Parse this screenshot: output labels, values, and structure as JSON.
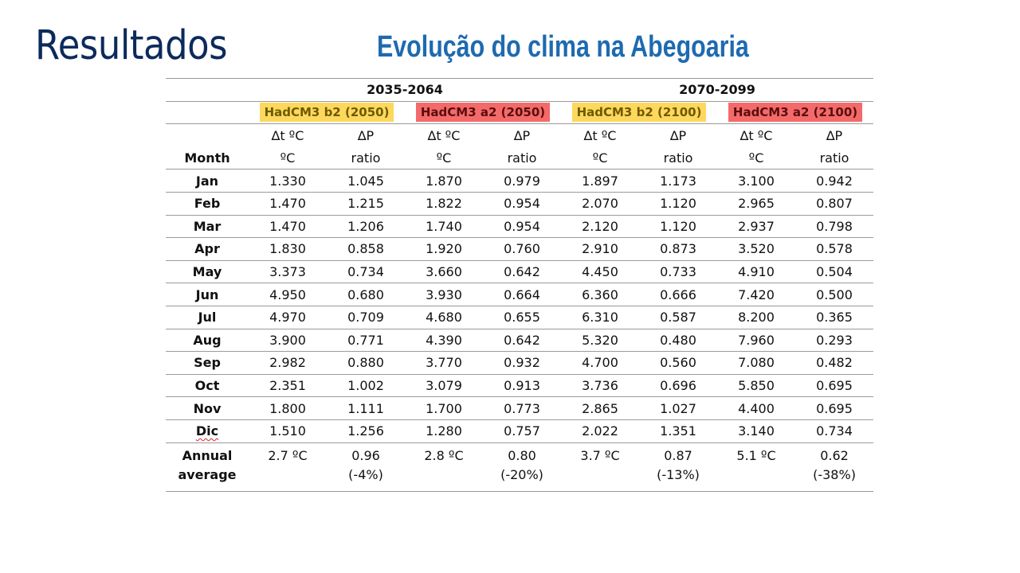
{
  "slide": {
    "title": "Resultados",
    "subtitle": "Evolução do clima na Abegoaria"
  },
  "table": {
    "periods": [
      "2035-2064",
      "2070-2099"
    ],
    "scenarios": [
      {
        "label": "HadCM3 b2 (2050)",
        "color": "#fdd85d"
      },
      {
        "label": "HadCM3 a2 (2050)",
        "color": "#f46a6a"
      },
      {
        "label": "HadCM3 b2 (2100)",
        "color": "#fdd85d"
      },
      {
        "label": "HadCM3 a2 (2100)",
        "color": "#f46a6a"
      }
    ],
    "var_header": [
      "∆t ºC",
      "∆P",
      "∆t ºC",
      "∆P",
      "∆t ºC",
      "∆P",
      "∆t ºC",
      "∆P"
    ],
    "month_header": "Month",
    "unit_header": [
      "ºC",
      "ratio",
      "ºC",
      "ratio",
      "ºC",
      "ratio",
      "ºC",
      "ratio"
    ],
    "rows": [
      {
        "month": "Jan",
        "values": [
          "1.330",
          "1.045",
          "1.870",
          "0.979",
          "1.897",
          "1.173",
          "3.100",
          "0.942"
        ]
      },
      {
        "month": "Feb",
        "values": [
          "1.470",
          "1.215",
          "1.822",
          "0.954",
          "2.070",
          "1.120",
          "2.965",
          "0.807"
        ]
      },
      {
        "month": "Mar",
        "values": [
          "1.470",
          "1.206",
          "1.740",
          "0.954",
          "2.120",
          "1.120",
          "2.937",
          "0.798"
        ]
      },
      {
        "month": "Apr",
        "values": [
          "1.830",
          "0.858",
          "1.920",
          "0.760",
          "2.910",
          "0.873",
          "3.520",
          "0.578"
        ]
      },
      {
        "month": "May",
        "values": [
          "3.373",
          "0.734",
          "3.660",
          "0.642",
          "4.450",
          "0.733",
          "4.910",
          "0.504"
        ]
      },
      {
        "month": "Jun",
        "values": [
          "4.950",
          "0.680",
          "3.930",
          "0.664",
          "6.360",
          "0.666",
          "7.420",
          "0.500"
        ]
      },
      {
        "month": "Jul",
        "values": [
          "4.970",
          "0.709",
          "4.680",
          "0.655",
          "6.310",
          "0.587",
          "8.200",
          "0.365"
        ]
      },
      {
        "month": "Aug",
        "values": [
          "3.900",
          "0.771",
          "4.390",
          "0.642",
          "5.320",
          "0.480",
          "7.960",
          "0.293"
        ]
      },
      {
        "month": "Sep",
        "values": [
          "2.982",
          "0.880",
          "3.770",
          "0.932",
          "4.700",
          "0.560",
          "7.080",
          "0.482"
        ]
      },
      {
        "month": "Oct",
        "values": [
          "2.351",
          "1.002",
          "3.079",
          "0.913",
          "3.736",
          "0.696",
          "5.850",
          "0.695"
        ]
      },
      {
        "month": "Nov",
        "values": [
          "1.800",
          "1.111",
          "1.700",
          "0.773",
          "2.865",
          "1.027",
          "4.400",
          "0.695"
        ]
      },
      {
        "month": "Dic",
        "values": [
          "1.510",
          "1.256",
          "1.280",
          "0.757",
          "2.022",
          "1.351",
          "3.140",
          "0.734"
        ]
      }
    ],
    "annual": {
      "label_line1": "Annual",
      "label_line2": "average",
      "values": [
        {
          "line1": "2.7 ºC",
          "line2": ""
        },
        {
          "line1": "0.96",
          "line2": "(-4%)"
        },
        {
          "line1": "2.8 ºC",
          "line2": ""
        },
        {
          "line1": "0.80",
          "line2": "(-20%)"
        },
        {
          "line1": "3.7 ºC",
          "line2": ""
        },
        {
          "line1": "0.87",
          "line2": "(-13%)"
        },
        {
          "line1": "5.1 ºC",
          "line2": ""
        },
        {
          "line1": "0.62",
          "line2": "(-38%)"
        }
      ]
    }
  }
}
